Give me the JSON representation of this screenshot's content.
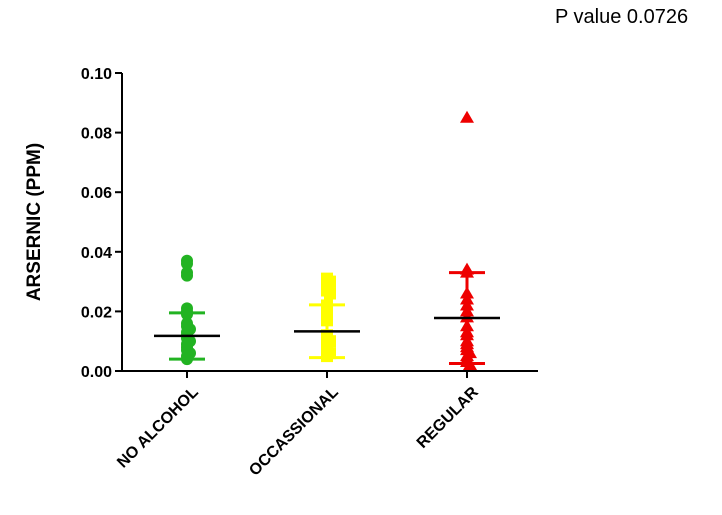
{
  "chart_data": {
    "type": "scatter",
    "annotation": "P value 0.0726",
    "ylabel": "ARSERNIC (PPM)",
    "xlabel": "",
    "ylim": [
      0,
      0.1
    ],
    "yticks": [
      "0.00",
      "0.02",
      "0.04",
      "0.06",
      "0.08",
      "0.10"
    ],
    "categories": [
      "NO ALCOHOL",
      "OCCASSIONAL",
      "REGULAR"
    ],
    "series": [
      {
        "category": "NO ALCOHOL",
        "marker": "circle",
        "color": "#22b322",
        "points": [
          0.037,
          0.036,
          0.033,
          0.032,
          0.021,
          0.02,
          0.019,
          0.016,
          0.015,
          0.014,
          0.013,
          0.012,
          0.011,
          0.01,
          0.009,
          0.008,
          0.007,
          0.006,
          0.005,
          0.004
        ],
        "mean": 0.0118,
        "upper": 0.0195,
        "lower": 0.004
      },
      {
        "category": "OCCASSIONAL",
        "marker": "square",
        "color": "#ffff00",
        "points": [
          0.031,
          0.03,
          0.029,
          0.028,
          0.027,
          0.026,
          0.022,
          0.02,
          0.018,
          0.017,
          0.012,
          0.011,
          0.01,
          0.009,
          0.008,
          0.007,
          0.006,
          0.005
        ],
        "mean": 0.0133,
        "upper": 0.0222,
        "lower": 0.0045
      },
      {
        "category": "REGULAR",
        "marker": "triangle",
        "color": "#ee0000",
        "points": [
          0.085,
          0.034,
          0.033,
          0.026,
          0.024,
          0.022,
          0.02,
          0.018,
          0.015,
          0.013,
          0.012,
          0.01,
          0.009,
          0.008,
          0.007,
          0.006,
          0.005,
          0.004,
          0.003,
          0.002
        ],
        "mean": 0.0178,
        "upper": 0.033,
        "lower": 0.0025
      }
    ]
  }
}
